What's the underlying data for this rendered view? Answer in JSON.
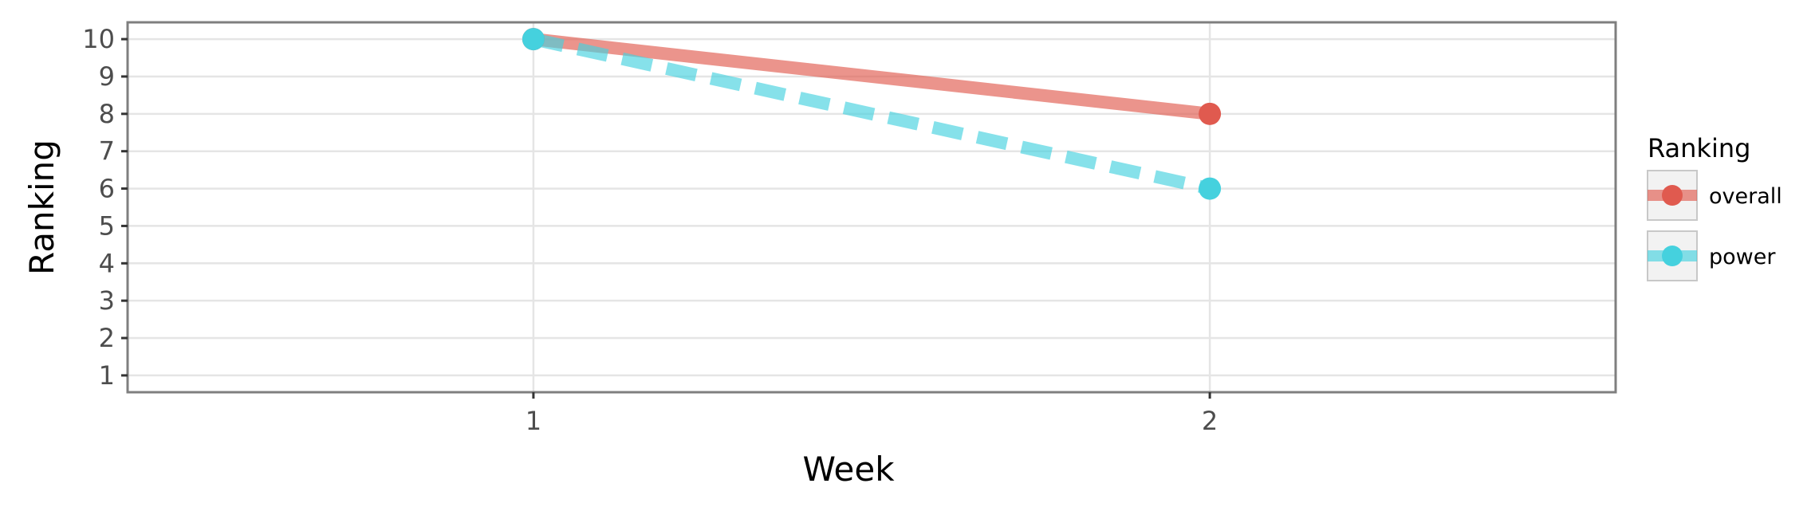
{
  "chart_data": {
    "type": "line",
    "title": "",
    "xlabel": "Week",
    "ylabel": "Ranking",
    "x_ticks": [
      "1",
      "2"
    ],
    "y_ticks": [
      "1",
      "2",
      "3",
      "4",
      "5",
      "6",
      "7",
      "8",
      "9",
      "10"
    ],
    "xlim": [
      0.4,
      2.6
    ],
    "ylim": [
      10.45,
      0.55
    ],
    "y_reversed": true,
    "grid": true,
    "legend": {
      "title": "Ranking",
      "position": "right"
    },
    "series": [
      {
        "name": "overall",
        "x": [
          1,
          2
        ],
        "y": [
          10,
          8
        ],
        "color": "#e05a4f",
        "line_style": "solid"
      },
      {
        "name": "power",
        "x": [
          1,
          2
        ],
        "y": [
          10,
          6
        ],
        "color": "#45d1de",
        "line_style": "dashed"
      }
    ]
  }
}
